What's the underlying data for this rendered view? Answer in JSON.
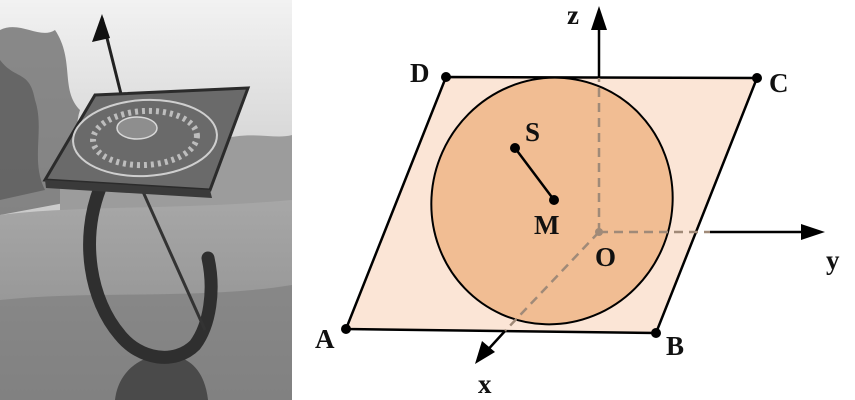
{
  "photo": {
    "subject": "sundial-photo"
  },
  "diagram": {
    "points": {
      "A": "A",
      "B": "B",
      "C": "C",
      "D": "D",
      "S": "S",
      "M": "M",
      "O": "O"
    },
    "axes": {
      "x": "x",
      "y": "y",
      "z": "z"
    },
    "colors": {
      "plane_fill": "#fbe5d6",
      "ellipse_fill": "#f1bd93",
      "dashed_axis": "#a08a78",
      "stroke": "#000000"
    }
  }
}
